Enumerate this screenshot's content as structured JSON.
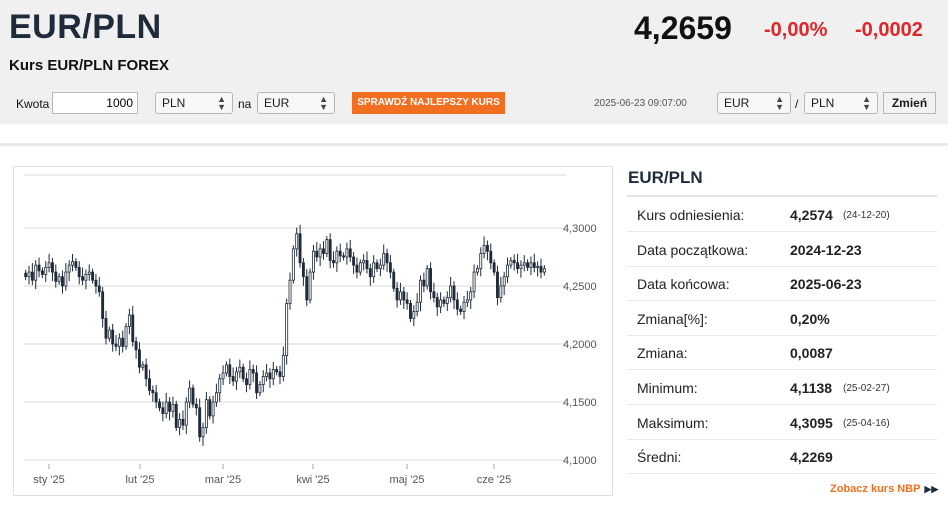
{
  "header": {
    "pair": "EUR/PLN",
    "subtitle": "Kurs EUR/PLN FOREX",
    "price": "4,2659",
    "change_pct": "-0,00%",
    "change_abs": "-0,0002"
  },
  "converter": {
    "amount_label": "Kwota",
    "amount_value": "1000",
    "from_currency": "PLN",
    "to_label": "na",
    "to_currency": "EUR",
    "best_rate_button": "SPRAWDŹ NAJLEPSZY KURS"
  },
  "pair_selector": {
    "timestamp": "2025-06-23 09:07:00",
    "base": "EUR",
    "separator": "/",
    "quote": "PLN",
    "change_button": "Zmień"
  },
  "stats": {
    "title": "EUR/PLN",
    "rows": [
      {
        "label": "Kurs odniesienia:",
        "value": "4,2574",
        "date": "(24-12-20)"
      },
      {
        "label": "Data początkowa:",
        "value": "2024-12-23",
        "date": ""
      },
      {
        "label": "Data końcowa:",
        "value": "2025-06-23",
        "date": ""
      },
      {
        "label": "Zmiana[%]:",
        "value": "0,20%",
        "date": ""
      },
      {
        "label": "Zmiana:",
        "value": "0,0087",
        "date": ""
      },
      {
        "label": "Minimum:",
        "value": "4,1138",
        "date": "(25-02-27)"
      },
      {
        "label": "Maksimum:",
        "value": "4,3095",
        "date": "(25-04-16)"
      },
      {
        "label": "Średni:",
        "value": "4,2269",
        "date": ""
      }
    ],
    "nbp_link": "Zobacz kurs NBP"
  },
  "colors": {
    "accent": "#f26f21",
    "negative": "#e0262b",
    "candle_down": "#1f2a3a",
    "candle_up": "#ffffff"
  },
  "chart_data": {
    "type": "candlestick",
    "y_ticks": [
      "4,3000",
      "4,2500",
      "4,2000",
      "4,1500",
      "4,1000"
    ],
    "ylim": [
      4.1,
      4.3
    ],
    "x_ticks": [
      "sty '25",
      "lut '25",
      "mar '25",
      "kwi '25",
      "maj '25",
      "cze '25"
    ],
    "closes": [
      4.258,
      4.262,
      4.255,
      4.268,
      4.263,
      4.26,
      4.266,
      4.27,
      4.262,
      4.254,
      4.258,
      4.25,
      4.262,
      4.268,
      4.271,
      4.266,
      4.258,
      4.255,
      4.26,
      4.262,
      4.255,
      4.25,
      4.245,
      4.222,
      4.205,
      4.212,
      4.2,
      4.198,
      4.205,
      4.198,
      4.215,
      4.225,
      4.202,
      4.195,
      4.18,
      4.182,
      4.17,
      4.16,
      4.158,
      4.15,
      4.145,
      4.14,
      4.15,
      4.142,
      4.148,
      4.128,
      4.135,
      4.13,
      4.15,
      4.162,
      4.148,
      4.145,
      4.12,
      4.128,
      4.152,
      4.138,
      4.15,
      4.158,
      4.17,
      4.175,
      4.182,
      4.172,
      4.168,
      4.176,
      4.18,
      4.17,
      4.165,
      4.178,
      4.175,
      4.158,
      4.165,
      4.172,
      4.175,
      4.17,
      4.178,
      4.176,
      4.172,
      4.19,
      4.235,
      4.255,
      4.282,
      4.295,
      4.27,
      4.258,
      4.238,
      4.262,
      4.28,
      4.275,
      4.282,
      4.278,
      4.29,
      4.272,
      4.27,
      4.28,
      4.276,
      4.275,
      4.282,
      4.275,
      4.268,
      4.262,
      4.27,
      4.272,
      4.265,
      4.258,
      4.27,
      4.265,
      4.268,
      4.278,
      4.27,
      4.262,
      4.248,
      4.238,
      4.245,
      4.238,
      4.235,
      4.222,
      4.228,
      4.236,
      4.255,
      4.25,
      4.265,
      4.245,
      4.24,
      4.232,
      4.238,
      4.235,
      4.24,
      4.25,
      4.238,
      4.23,
      4.228,
      4.236,
      4.238,
      4.245,
      4.262,
      4.265,
      4.278,
      4.285,
      4.28,
      4.27,
      4.262,
      4.24,
      4.25,
      4.258,
      4.268,
      4.272,
      4.27,
      4.265,
      4.268,
      4.27,
      4.266,
      4.27,
      4.266,
      4.267,
      4.262,
      4.265
    ]
  }
}
